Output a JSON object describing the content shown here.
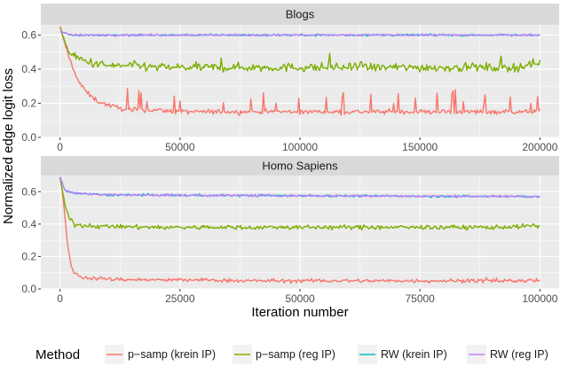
{
  "chart_data": {
    "type": "line",
    "ylabel": "Normalized edge logit loss",
    "xlabel": "Iteration number",
    "grid": true,
    "legend": {
      "title": "Method",
      "placement": "bottom",
      "entries": [
        {
          "key": "psamp_krein",
          "label": "p−samp (krein IP)",
          "color": "#F8766D"
        },
        {
          "key": "psamp_reg",
          "label": "p−samp (reg IP)",
          "color": "#7CAE00"
        },
        {
          "key": "rw_krein",
          "label": "RW (krein IP)",
          "color": "#00BFC4"
        },
        {
          "key": "rw_reg",
          "label": "RW (reg IP)",
          "color": "#C77CFF"
        }
      ]
    },
    "panels": [
      {
        "title": "Blogs",
        "xlim": [
          -8000,
          208000
        ],
        "ylim": [
          0.0,
          0.66
        ],
        "xticks": [
          0,
          50000,
          100000,
          150000,
          200000
        ],
        "xtick_labels": [
          "0",
          "50000",
          "100000",
          "150000",
          "200000"
        ],
        "yticks": [
          0.0,
          0.2,
          0.4,
          0.6
        ],
        "ytick_labels": [
          "0.0",
          "0.2",
          "0.4",
          "0.6"
        ],
        "series": [
          {
            "key": "psamp_krein",
            "name": "p−samp (krein IP)",
            "x": [
              0,
              2000,
              5000,
              8000,
              12000,
              16000,
              20000,
              25000,
              30000,
              40000,
              50000,
              60000,
              70000,
              80000,
              90000,
              100000,
              110000,
              120000,
              130000,
              140000,
              150000,
              160000,
              170000,
              180000,
              190000,
              200000
            ],
            "y": [
              0.65,
              0.55,
              0.42,
              0.32,
              0.25,
              0.21,
              0.19,
              0.17,
              0.16,
              0.16,
              0.15,
              0.15,
              0.15,
              0.15,
              0.15,
              0.15,
              0.15,
              0.15,
              0.15,
              0.15,
              0.15,
              0.15,
              0.15,
              0.15,
              0.15,
              0.15
            ]
          },
          {
            "key": "psamp_reg",
            "name": "p−samp (reg IP)",
            "x": [
              0,
              3000,
              6000,
              10000,
              15000,
              20000,
              30000,
              40000,
              50000,
              60000,
              70000,
              80000,
              90000,
              100000,
              110000,
              120000,
              130000,
              140000,
              150000,
              160000,
              170000,
              180000,
              190000,
              200000
            ],
            "y": [
              0.65,
              0.52,
              0.47,
              0.45,
              0.43,
              0.42,
              0.42,
              0.41,
              0.41,
              0.41,
              0.41,
              0.41,
              0.41,
              0.41,
              0.41,
              0.41,
              0.41,
              0.41,
              0.41,
              0.41,
              0.41,
              0.41,
              0.41,
              0.44
            ]
          },
          {
            "key": "rw_krein",
            "name": "RW (krein IP)",
            "x": [
              0,
              5000,
              20000,
              50000,
              100000,
              150000,
              200000
            ],
            "y": [
              0.62,
              0.6,
              0.6,
              0.6,
              0.6,
              0.6,
              0.6
            ]
          },
          {
            "key": "rw_reg",
            "name": "RW (reg IP)",
            "x": [
              0,
              5000,
              20000,
              50000,
              100000,
              150000,
              200000
            ],
            "y": [
              0.62,
              0.6,
              0.6,
              0.6,
              0.6,
              0.6,
              0.6
            ]
          }
        ]
      },
      {
        "title": "Homo Sapiens",
        "xlim": [
          -4000,
          104000
        ],
        "ylim": [
          0.0,
          0.7
        ],
        "xticks": [
          0,
          25000,
          50000,
          75000,
          100000
        ],
        "xtick_labels": [
          "0",
          "25000",
          "50000",
          "75000",
          "100000"
        ],
        "yticks": [
          0.0,
          0.2,
          0.4,
          0.6
        ],
        "ytick_labels": [
          "0.0",
          "0.2",
          "0.4",
          "0.6"
        ],
        "series": [
          {
            "key": "psamp_krein",
            "name": "p−samp (krein IP)",
            "x": [
              0,
              500,
              1000,
              1500,
              2000,
              2500,
              3000,
              4000,
              5000,
              7000,
              10000,
              20000,
              30000,
              40000,
              50000,
              60000,
              70000,
              80000,
              90000,
              100000
            ],
            "y": [
              0.69,
              0.6,
              0.45,
              0.3,
              0.19,
              0.13,
              0.1,
              0.08,
              0.07,
              0.065,
              0.06,
              0.055,
              0.055,
              0.05,
              0.05,
              0.05,
              0.05,
              0.05,
              0.05,
              0.05
            ]
          },
          {
            "key": "psamp_reg",
            "name": "p−samp (reg IP)",
            "x": [
              0,
              1000,
              2000,
              3000,
              5000,
              10000,
              20000,
              30000,
              40000,
              50000,
              60000,
              70000,
              80000,
              90000,
              100000
            ],
            "y": [
              0.69,
              0.52,
              0.43,
              0.4,
              0.39,
              0.385,
              0.38,
              0.38,
              0.38,
              0.38,
              0.38,
              0.38,
              0.38,
              0.38,
              0.39
            ]
          },
          {
            "key": "rw_krein",
            "name": "RW (krein IP)",
            "x": [
              0,
              1000,
              3000,
              10000,
              50000,
              100000
            ],
            "y": [
              0.69,
              0.61,
              0.59,
              0.58,
              0.575,
              0.57
            ]
          },
          {
            "key": "rw_reg",
            "name": "RW (reg IP)",
            "x": [
              0,
              1000,
              3000,
              10000,
              50000,
              100000
            ],
            "y": [
              0.69,
              0.61,
              0.59,
              0.58,
              0.575,
              0.57
            ]
          }
        ]
      }
    ]
  },
  "style": {
    "panel_bg": "#EBEBEB",
    "strip_bg": "#D9D9D9",
    "grid_color": "#FFFFFF"
  }
}
